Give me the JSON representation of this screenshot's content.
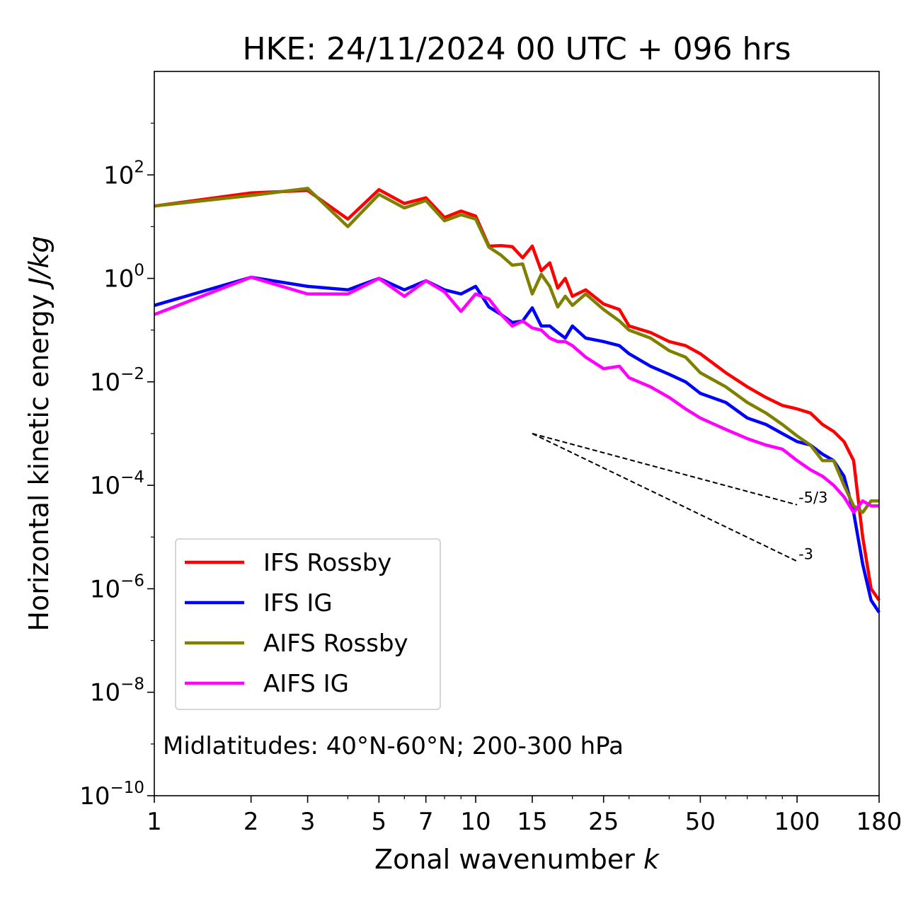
{
  "chart_data": {
    "type": "line",
    "title": "HKE: 24/11/2024 00 UTC + 096 hrs",
    "xlabel_main": "Zonal wavenumber ",
    "xlabel_var": "k",
    "ylabel_main": "Horizontal kinetic energy ",
    "ylabel_units": "J/kg",
    "x_scale": "log",
    "y_scale": "log",
    "xlim": [
      1,
      180
    ],
    "ylim": [
      1e-10,
      10000
    ],
    "x_ticks": [
      1,
      2,
      3,
      5,
      7,
      10,
      15,
      25,
      50,
      100,
      180
    ],
    "x_tick_labels": [
      "1",
      "2",
      "3",
      "5",
      "7",
      "10",
      "15",
      "25",
      "50",
      "100",
      "180"
    ],
    "y_ticks": [
      {
        "value": 1e-10,
        "base": "10",
        "exp": "−10"
      },
      {
        "value": 1e-08,
        "base": "10",
        "exp": "−8"
      },
      {
        "value": 1e-06,
        "base": "10",
        "exp": "−6"
      },
      {
        "value": 0.0001,
        "base": "10",
        "exp": "−4"
      },
      {
        "value": 0.01,
        "base": "10",
        "exp": "−2"
      },
      {
        "value": 1,
        "base": "10",
        "exp": "0"
      },
      {
        "value": 100,
        "base": "10",
        "exp": "2"
      }
    ],
    "annotation": "Midlatitudes: 40°N-60°N; 200-300 hPa",
    "legend_position": "lower-left",
    "reference_slopes": [
      {
        "label": "-5/3",
        "x": [
          15,
          100
        ],
        "y": [
          0.001,
          4.2e-05
        ]
      },
      {
        "label": "-3",
        "x": [
          15,
          100
        ],
        "y": [
          0.001,
          3.4e-06
        ]
      }
    ],
    "series": [
      {
        "name": "IFS Rossby",
        "color": "#ff0000",
        "x": [
          1,
          2,
          3,
          4,
          5,
          6,
          7,
          8,
          9,
          10,
          11,
          12,
          13,
          14,
          15,
          16,
          17,
          18,
          19,
          20,
          22,
          25,
          28,
          30,
          35,
          40,
          45,
          50,
          60,
          70,
          80,
          90,
          100,
          110,
          120,
          130,
          140,
          150,
          160,
          170,
          180
        ],
        "y": [
          25,
          45,
          50,
          14,
          52,
          28,
          36,
          15,
          20,
          16,
          4.2,
          4.3,
          4.1,
          2.5,
          4.2,
          1.4,
          2.0,
          0.65,
          1.0,
          0.45,
          0.6,
          0.32,
          0.25,
          0.12,
          0.09,
          0.06,
          0.05,
          0.035,
          0.015,
          0.008,
          0.005,
          0.0035,
          0.003,
          0.0025,
          0.0015,
          0.0011,
          0.0007,
          0.0003,
          1e-05,
          1e-06,
          6e-07
        ]
      },
      {
        "name": "IFS IG",
        "color": "#0000ff",
        "x": [
          1,
          2,
          3,
          4,
          5,
          6,
          7,
          8,
          9,
          10,
          11,
          12,
          13,
          14,
          15,
          16,
          17,
          18,
          19,
          20,
          22,
          25,
          28,
          30,
          35,
          40,
          45,
          50,
          60,
          70,
          80,
          90,
          100,
          110,
          120,
          130,
          140,
          150,
          160,
          170,
          180
        ],
        "y": [
          0.3,
          1.05,
          0.7,
          0.6,
          1.0,
          0.6,
          0.9,
          0.6,
          0.5,
          0.7,
          0.28,
          0.2,
          0.14,
          0.15,
          0.27,
          0.12,
          0.12,
          0.09,
          0.07,
          0.12,
          0.07,
          0.06,
          0.05,
          0.035,
          0.02,
          0.014,
          0.01,
          0.006,
          0.004,
          0.002,
          0.0015,
          0.001,
          0.0007,
          0.0006,
          0.0004,
          0.0003,
          0.00015,
          3e-05,
          3e-06,
          6e-07,
          3.5e-07
        ]
      },
      {
        "name": "AIFS Rossby",
        "color": "#808000",
        "x": [
          1,
          2,
          3,
          4,
          5,
          6,
          7,
          8,
          9,
          10,
          11,
          12,
          13,
          14,
          15,
          16,
          17,
          18,
          19,
          20,
          22,
          25,
          28,
          30,
          35,
          40,
          45,
          50,
          60,
          70,
          80,
          90,
          100,
          110,
          120,
          130,
          140,
          150,
          160,
          170,
          180
        ],
        "y": [
          25,
          40,
          55,
          10,
          42,
          23,
          32,
          13,
          17,
          14,
          4.0,
          2.8,
          1.8,
          1.9,
          0.5,
          1.2,
          0.7,
          0.28,
          0.45,
          0.3,
          0.5,
          0.25,
          0.15,
          0.1,
          0.07,
          0.04,
          0.03,
          0.015,
          0.008,
          0.004,
          0.0025,
          0.0015,
          0.0009,
          0.0006,
          0.0003,
          0.0003,
          0.0001,
          4e-05,
          3e-05,
          5e-05,
          5e-05
        ]
      },
      {
        "name": "AIFS IG",
        "color": "#ff00ff",
        "x": [
          1,
          2,
          3,
          4,
          5,
          6,
          7,
          8,
          9,
          10,
          11,
          12,
          13,
          14,
          15,
          16,
          17,
          18,
          19,
          20,
          22,
          25,
          28,
          30,
          35,
          40,
          45,
          50,
          60,
          70,
          80,
          90,
          100,
          110,
          120,
          130,
          140,
          150,
          160,
          170,
          180
        ],
        "y": [
          0.2,
          1.05,
          0.5,
          0.5,
          1.0,
          0.45,
          0.9,
          0.55,
          0.23,
          0.5,
          0.4,
          0.2,
          0.12,
          0.15,
          0.11,
          0.1,
          0.07,
          0.06,
          0.06,
          0.05,
          0.03,
          0.018,
          0.02,
          0.012,
          0.008,
          0.005,
          0.003,
          0.002,
          0.0012,
          0.0008,
          0.0006,
          0.0005,
          0.0003,
          0.0002,
          0.00015,
          0.0001,
          6e-05,
          3e-05,
          5e-05,
          4e-05,
          4e-05
        ]
      }
    ]
  }
}
